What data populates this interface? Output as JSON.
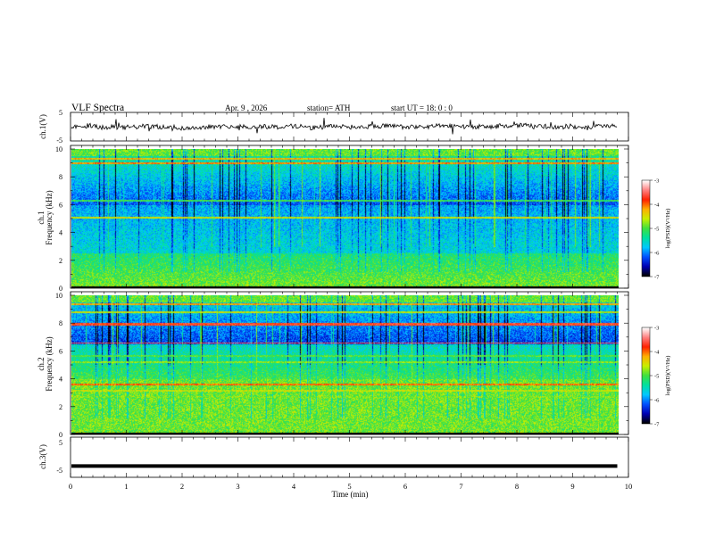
{
  "header": {
    "title": "VLF  Spectra",
    "date": "Apr. 9  , 2026",
    "station": "station= ATH",
    "start": "start  UT  =    18: 0   : 0"
  },
  "chart_data": [
    {
      "type": "line",
      "panel": "ch1-waveform",
      "ylabel": "ch.1(V)",
      "ylim": [
        -5,
        5
      ],
      "ytick_labels": [
        "5",
        "-5"
      ],
      "xlim": [
        0,
        10
      ],
      "series": [
        {
          "values_description_free": true
        }
      ]
    },
    {
      "type": "heatmap",
      "panel": "ch1-spectrogram",
      "ylabel": "Frequency (kHz)",
      "channel_label": "ch.1",
      "ylim": [
        0,
        10
      ],
      "ytick_labels": [
        "0",
        "2",
        "4",
        "6",
        "8",
        "10"
      ],
      "xlim": [
        0,
        10
      ],
      "data_end_min": 9.8,
      "colorbar": {
        "label": "log(PSD)(V²/Hz)",
        "range": [
          -7,
          -3
        ],
        "tick_labels": [
          "-3",
          "-4",
          "-5",
          "-6",
          "-7"
        ],
        "colors": [
          "#000000",
          "#0000b4",
          "#0050ff",
          "#00c8ff",
          "#00e0a0",
          "#40e040",
          "#c8f000",
          "#ffb000",
          "#ff2000",
          "#ff8080",
          "#ffffff"
        ]
      }
    },
    {
      "type": "heatmap",
      "panel": "ch2-spectrogram",
      "ylabel": "Frequency (kHz)",
      "channel_label": "ch.2",
      "ylim": [
        0,
        10
      ],
      "ytick_labels": [
        "0",
        "2",
        "4",
        "6",
        "8",
        "10"
      ],
      "xlim": [
        0,
        10
      ],
      "data_end_min": 9.8,
      "colorbar": {
        "label": "log(PSD)(V²/Hz)",
        "range": [
          -7,
          -3
        ],
        "tick_labels": [
          "-3",
          "-4",
          "-5",
          "-6",
          "-7"
        ]
      }
    },
    {
      "type": "line",
      "panel": "ch3-waveform",
      "ylabel": "ch.3(V)",
      "ylim": [
        -5,
        5
      ],
      "ytick_labels": [
        "5",
        "-5"
      ],
      "xlim": [
        0,
        10
      ],
      "series": [
        {
          "level": -2.2
        }
      ]
    }
  ],
  "xaxis": {
    "label": "Time  (min)",
    "tick_labels": [
      "0",
      "1",
      "2",
      "3",
      "4",
      "5",
      "6",
      "7",
      "8",
      "9",
      "10"
    ]
  }
}
